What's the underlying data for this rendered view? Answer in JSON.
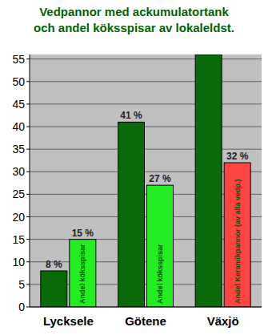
{
  "chart_data": {
    "type": "bar",
    "title": "Vedpannor med ackumulatortank\noch andel köksspisar av lokaleldst.",
    "categories": [
      "Lycksele",
      "Götene",
      "Växjö"
    ],
    "series": [
      {
        "color": "#086a08",
        "values": [
          8,
          41,
          56
        ],
        "value_labels": [
          "8 %",
          "41 %",
          null
        ]
      },
      {
        "colors": [
          "#22ee22",
          "#22ee22",
          "#ff4444"
        ],
        "values": [
          15,
          27,
          32
        ],
        "value_labels": [
          "15 %",
          "27 %",
          "32 %"
        ],
        "inner_labels": [
          "Andel köksspisar",
          "Andel köksspisar",
          "Andel Keramikpannor (av alla vedp.)"
        ]
      }
    ],
    "ylim": [
      0,
      56
    ],
    "yticks": [
      0,
      5,
      10,
      15,
      20,
      25,
      30,
      35,
      40,
      45,
      50,
      55
    ],
    "grid": true,
    "data_labels": true
  }
}
